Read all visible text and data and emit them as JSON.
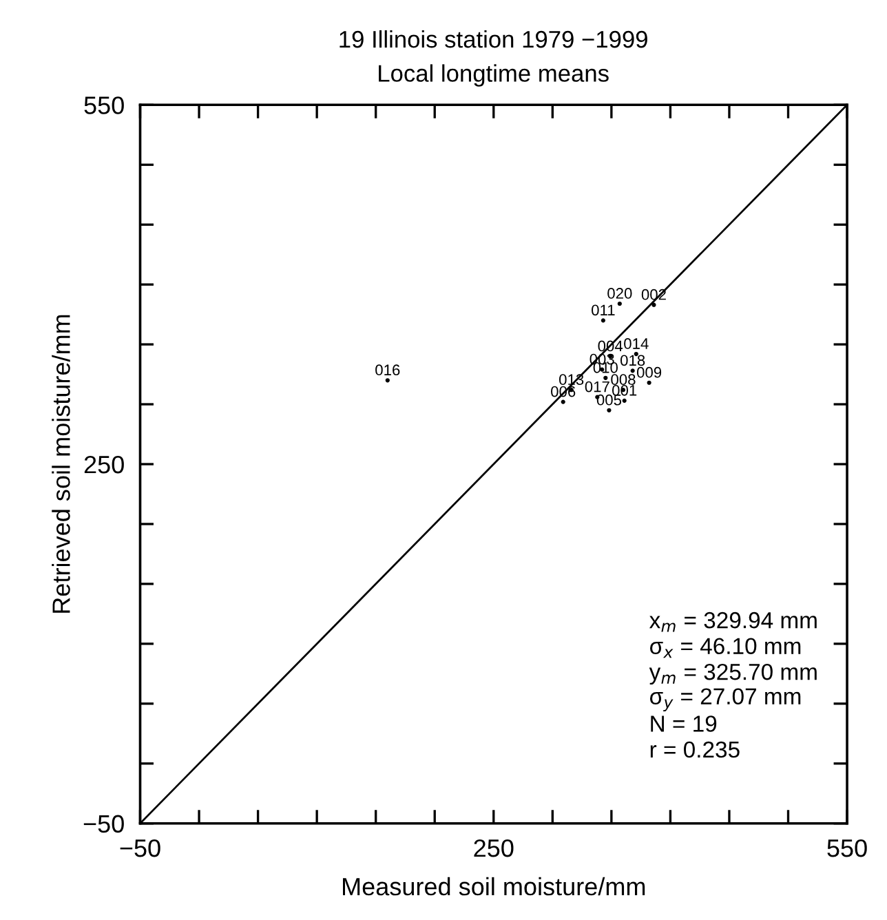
{
  "chart_data": {
    "type": "scatter",
    "title": "19 Illinois station 1979 −1999",
    "subtitle": "Local longtime means",
    "xlabel": "Measured soil moisture/mm",
    "ylabel": "Retrieved soil moisture/mm",
    "xlim": [
      -50,
      550
    ],
    "ylim": [
      -50,
      550
    ],
    "xticks": [
      {
        "value": -50,
        "label": "−50"
      },
      {
        "value": 0,
        "label": null
      },
      {
        "value": 50,
        "label": null
      },
      {
        "value": 100,
        "label": null
      },
      {
        "value": 150,
        "label": null
      },
      {
        "value": 200,
        "label": null
      },
      250,
      {
        "value": 300,
        "label": null
      },
      {
        "value": 350,
        "label": null
      },
      {
        "value": 400,
        "label": null
      },
      {
        "value": 450,
        "label": null
      },
      {
        "value": 500,
        "label": null
      },
      550
    ],
    "yticks": [
      {
        "value": -50,
        "label": "−50"
      },
      {
        "value": 0,
        "label": null
      },
      {
        "value": 50,
        "label": null
      },
      {
        "value": 100,
        "label": null
      },
      {
        "value": 150,
        "label": null
      },
      {
        "value": 200,
        "label": null
      },
      250,
      {
        "value": 300,
        "label": null
      },
      {
        "value": 350,
        "label": null
      },
      {
        "value": 400,
        "label": null
      },
      {
        "value": 450,
        "label": null
      },
      {
        "value": 500,
        "label": null
      },
      550
    ],
    "grid": false,
    "legend": false,
    "series": [
      {
        "type": "scatter",
        "marker": "circle",
        "color": "#000000",
        "x": [
          357,
          386,
          343,
          349,
          371,
          342,
          368,
          345,
          382,
          360,
          316,
          338,
          361,
          309,
          348,
          160
        ],
        "values": [
          384,
          383,
          370,
          340,
          342,
          329,
          328,
          322,
          318,
          312,
          312,
          306,
          303,
          302,
          295,
          320
        ]
      },
      {
        "type": "line",
        "color": "#000000",
        "line_style": "solid",
        "x": [
          -50,
          550
        ],
        "values": [
          -50,
          550
        ]
      }
    ],
    "annotations": [
      {
        "text": "020",
        "x": 357,
        "y": 384
      },
      {
        "text": "002",
        "x": 386,
        "y": 383
      },
      {
        "text": "011",
        "x": 343,
        "y": 370
      },
      {
        "text": "004",
        "x": 349,
        "y": 340
      },
      {
        "text": "014",
        "x": 371,
        "y": 342
      },
      {
        "text": "003",
        "x": 342,
        "y": 329
      },
      {
        "text": "018",
        "x": 368,
        "y": 328
      },
      {
        "text": "010",
        "x": 345,
        "y": 322
      },
      {
        "text": "009",
        "x": 382,
        "y": 318
      },
      {
        "text": "008",
        "x": 360,
        "y": 312
      },
      {
        "text": "013",
        "x": 316,
        "y": 312
      },
      {
        "text": "017",
        "x": 338,
        "y": 306
      },
      {
        "text": "001",
        "x": 361,
        "y": 303
      },
      {
        "text": "006",
        "x": 309,
        "y": 302
      },
      {
        "text": "005",
        "x": 348,
        "y": 295
      },
      {
        "text": "016",
        "x": 160,
        "y": 320
      },
      "x$_{m}$ = 329.94 mm",
      "σ$_{x}$ = 46.10 mm",
      "y$_{m}$ = 325.70 mm",
      "σ$_{y}$ = 27.07 mm",
      "N = 19",
      "r = 0.235"
    ]
  }
}
